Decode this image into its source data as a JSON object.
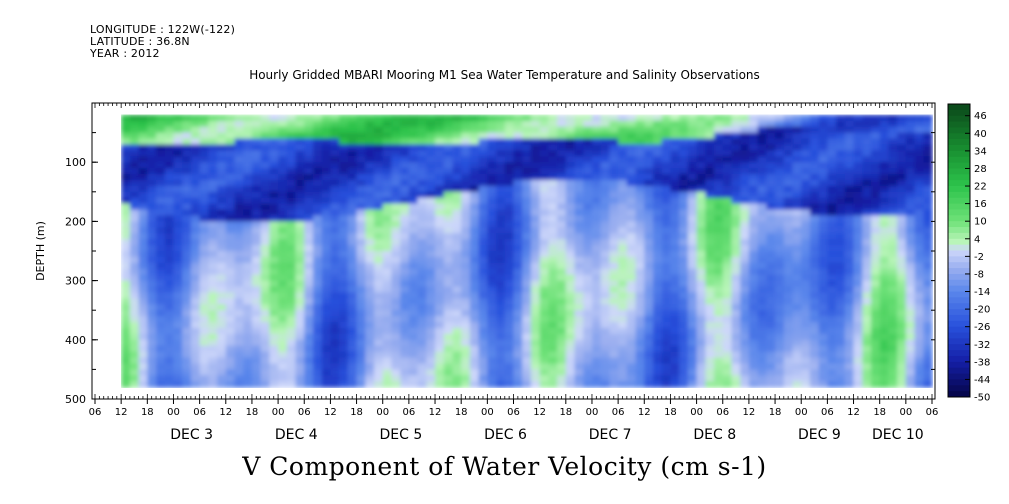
{
  "header": {
    "longitude": "LONGITUDE : 122W(-122)",
    "latitude": "LATITUDE : 36.8N",
    "year": "YEAR : 2012"
  },
  "chart_data": {
    "type": "heatmap",
    "title": "Hourly Gridded MBARI Mooring M1 Sea Water Temperature and Salinity Observations",
    "xlabel": "V Component of Water Velocity (cm s-1)",
    "ylabel": "DEPTH (m)",
    "y_reversed": true,
    "ylim": [
      500,
      0
    ],
    "y_ticks": [
      "100",
      "200",
      "300",
      "400",
      "500"
    ],
    "x_range_hours": [
      "2012-12-02T06:00",
      "2012-12-10T06:00"
    ],
    "x_hour_ticks": [
      "06",
      "12",
      "18",
      "00",
      "06",
      "12",
      "18",
      "00",
      "06",
      "12",
      "18",
      "00",
      "06",
      "12",
      "18",
      "00",
      "06",
      "12",
      "18",
      "00",
      "06",
      "12",
      "18",
      "00",
      "06",
      "12",
      "18",
      "00",
      "06",
      "12",
      "18",
      "00",
      "06"
    ],
    "x_day_labels": [
      "DEC 3",
      "DEC 4",
      "DEC 5",
      "DEC 6",
      "DEC 7",
      "DEC 8",
      "DEC 9",
      "DEC 10"
    ],
    "colorbar": {
      "labels": [
        "46",
        "40",
        "34",
        "28",
        "22",
        "16",
        "10",
        "4",
        "-2",
        "-8",
        "-14",
        "-20",
        "-26",
        "-32",
        "-38",
        "-44",
        "-50"
      ],
      "range": [
        -50,
        50
      ]
    },
    "field_summary": {
      "surface_layer_0_to_60m": "positive (green, ~+10 to +30)",
      "layer_60_to_200m": "negative (blue, ~-20 to -40)",
      "deep_layer_200_to_480m": "mixed (light blue ~-10 with green streaks ~+10)",
      "data_start": "2012-12-02T12:00",
      "data_end": "2012-12-10T06:00"
    }
  }
}
